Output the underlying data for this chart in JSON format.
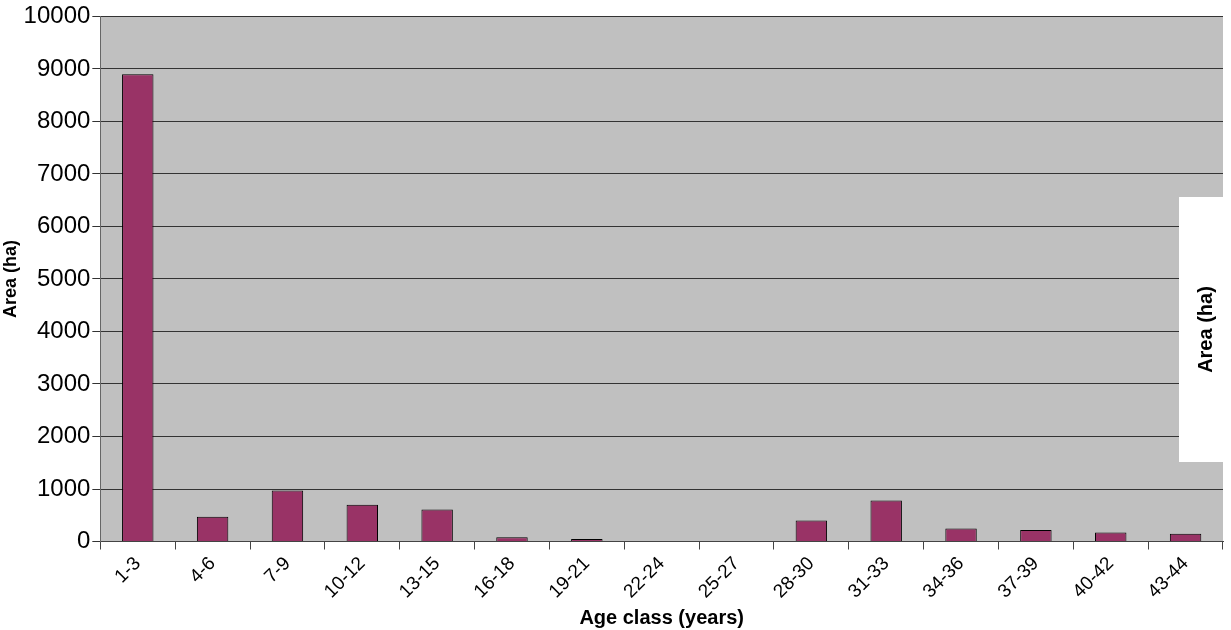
{
  "chart_data": {
    "type": "bar",
    "xlabel": "Age class (years)",
    "ylabel": "Area (ha)",
    "categories": [
      "1-3",
      "4-6",
      "7-9",
      "10-12",
      "13-15",
      "16-18",
      "19-21",
      "22-24",
      "25-27",
      "28-30",
      "31-33",
      "34-36",
      "37-39",
      "40-42",
      "43-44"
    ],
    "values": [
      8900,
      470,
      970,
      700,
      610,
      80,
      50,
      0,
      0,
      400,
      780,
      250,
      220,
      170,
      150
    ],
    "color": "#993366",
    "ylim": [
      0,
      10000
    ],
    "yticks": [
      0,
      1000,
      2000,
      3000,
      4000,
      5000,
      6000,
      7000,
      8000,
      9000,
      10000
    ],
    "grid": "y",
    "legend": false,
    "annotations": [
      "Area (ha)"
    ]
  }
}
